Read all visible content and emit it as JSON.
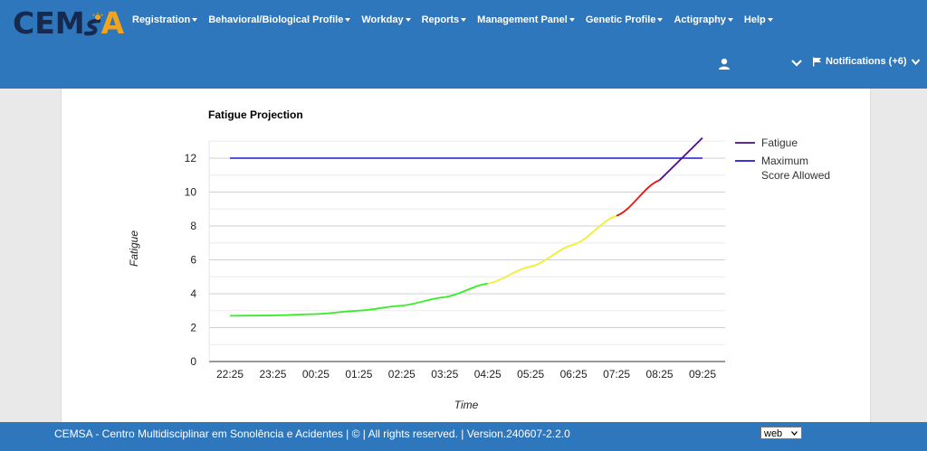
{
  "brand": {
    "logo_left": "CEM",
    "logo_right": "A"
  },
  "nav": {
    "items": [
      {
        "label": "Registration"
      },
      {
        "label": "Behavioral/Biological Profile"
      },
      {
        "label": "Workday"
      },
      {
        "label": "Reports"
      },
      {
        "label": "Management Panel"
      },
      {
        "label": "Genetic Profile"
      },
      {
        "label": "Actigraphy"
      },
      {
        "label": "Help"
      }
    ],
    "notifications_label": "Notifications (+6)"
  },
  "colors": {
    "navbar": "#2f77bd",
    "fatigue_series": "#4b0a8c",
    "max_series": "#1a1ad6",
    "low_zone": "#33ee22",
    "mid_zone": "#f0f02a",
    "high_zone": "#e81010"
  },
  "chart_data": {
    "type": "line",
    "title": "Fatigue Projection",
    "xlabel": "Time",
    "ylabel": "Fatigue",
    "ylim": [
      0,
      13
    ],
    "yticks": [
      0,
      2,
      4,
      6,
      8,
      10,
      12
    ],
    "legend_position": "right",
    "grid": true,
    "categories": [
      "22:25",
      "23:25",
      "00:25",
      "01:25",
      "02:25",
      "03:25",
      "04:25",
      "05:25",
      "06:25",
      "07:25",
      "08:25",
      "09:25"
    ],
    "series": [
      {
        "name": "Fatigue",
        "values": [
          2.7,
          2.72,
          2.8,
          3.0,
          3.3,
          3.8,
          4.6,
          5.6,
          6.9,
          8.6,
          10.7,
          13.2
        ]
      },
      {
        "name": "Maximum Score Allowed",
        "values": [
          12,
          12,
          12,
          12,
          12,
          12,
          12,
          12,
          12,
          12,
          12,
          12
        ]
      }
    ],
    "legend_lines": [
      [
        "Fatigue"
      ],
      [
        "Maximum",
        "Score Allowed"
      ]
    ]
  },
  "footer": {
    "text": "CEMSA - Centro Multidisciplinar em Sonolência e Acidentes | © | All rights reserved. | Version.240607-2.2.0",
    "select_value": "web"
  }
}
